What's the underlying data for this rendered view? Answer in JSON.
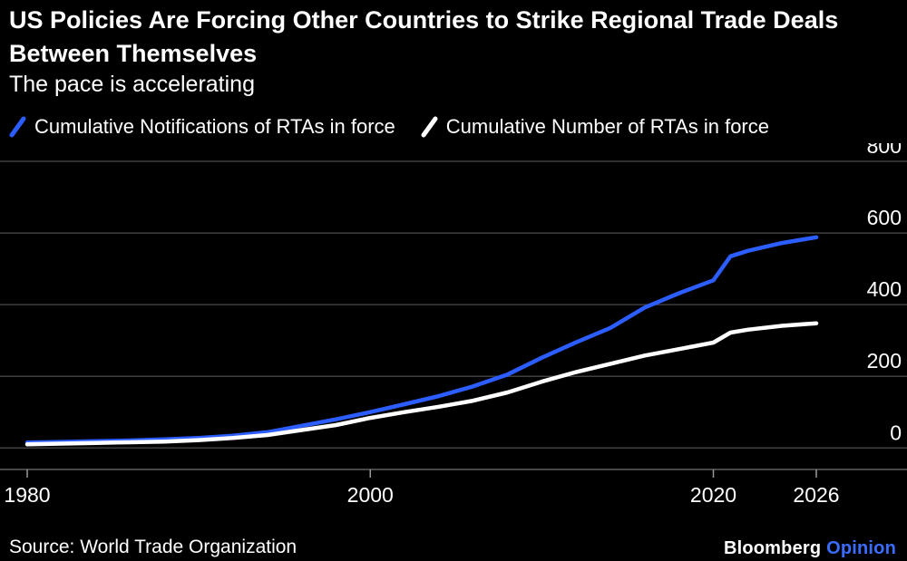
{
  "header": {
    "title": "US Policies Are Forcing Other Countries to Strike Regional Trade Deals Between Themselves",
    "subtitle": "The pace is accelerating"
  },
  "legend": {
    "items": [
      {
        "label": "Cumulative Notifications of RTAs in force",
        "color": "#2b5dff"
      },
      {
        "label": "Cumulative Number of RTAs in force",
        "color": "#ffffff"
      }
    ]
  },
  "footer": {
    "source": "Source: World Trade Organization",
    "brand": "Bloomberg",
    "brand_suffix": "Opinion",
    "brand_suffix_color": "#3a6dff"
  },
  "colors": {
    "background": "#000000",
    "gridline": "#3f3f3f",
    "axis": "#5f5f5f",
    "tick": "#9a9a9a",
    "text": "#ffffff",
    "accent_blue": "#2b5dff"
  },
  "chart_data": {
    "type": "line",
    "title": "US Policies Are Forcing Other Countries to Strike Regional Trade Deals Between Themselves",
    "subtitle": "The pace is accelerating",
    "xlabel": "",
    "ylabel": "",
    "grid": "horizontal",
    "legend_position": "top",
    "xlim": [
      1980,
      2026
    ],
    "ylim": [
      -60,
      800
    ],
    "yticks": [
      0,
      200,
      400,
      600,
      800
    ],
    "xticks": [
      1980,
      2000,
      2020,
      2026
    ],
    "x": [
      1980,
      1982,
      1984,
      1986,
      1988,
      1990,
      1992,
      1994,
      1996,
      1998,
      2000,
      2002,
      2004,
      2006,
      2008,
      2010,
      2012,
      2014,
      2016,
      2018,
      2020,
      2021,
      2022,
      2024,
      2026
    ],
    "series": [
      {
        "name": "Cumulative Notifications of RTAs in force",
        "color": "#2b5dff",
        "values": [
          15,
          17,
          19,
          21,
          24,
          28,
          34,
          44,
          62,
          80,
          100,
          122,
          145,
          172,
          205,
          252,
          295,
          335,
          392,
          432,
          468,
          535,
          550,
          572,
          588
        ]
      },
      {
        "name": "Cumulative Number of RTAs in force",
        "color": "#ffffff",
        "values": [
          10,
          12,
          14,
          16,
          18,
          22,
          28,
          36,
          50,
          64,
          84,
          100,
          115,
          132,
          155,
          185,
          212,
          235,
          258,
          276,
          294,
          322,
          330,
          341,
          348
        ]
      }
    ]
  }
}
